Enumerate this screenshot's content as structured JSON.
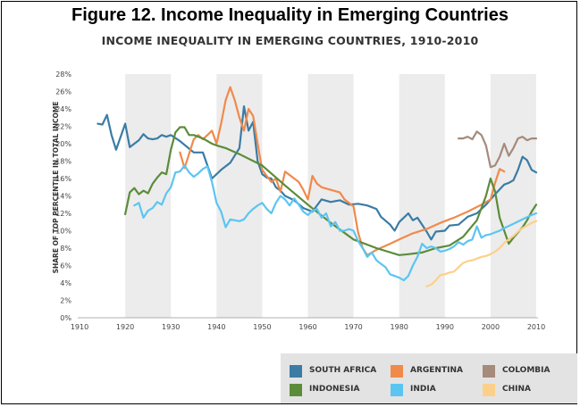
{
  "figure_title": "Figure 12. Income Inequality in Emerging Countries",
  "chart_data": {
    "type": "line",
    "title": "INCOME INEQUALITY IN EMERGING COUNTRIES, 1910-2010",
    "xlabel": "",
    "ylabel": "SHARE OF TOP PERCENTILE IN TOTAL INCOME",
    "xlim": [
      1910,
      2010
    ],
    "ylim": [
      0,
      28
    ],
    "x_ticks": [
      "1910",
      "1920",
      "1930",
      "1940",
      "1950",
      "1960",
      "1970",
      "1980",
      "1990",
      "2000",
      "2010"
    ],
    "y_ticks": [
      "0%",
      "2%",
      "4%",
      "6%",
      "8%",
      "10%",
      "12%",
      "14%",
      "16%",
      "18%",
      "20%",
      "22%",
      "24%",
      "26%",
      "28%"
    ],
    "shaded_decades": [
      [
        1920,
        1930
      ],
      [
        1940,
        1950
      ],
      [
        1960,
        1970
      ],
      [
        1980,
        1990
      ],
      [
        2000,
        2010
      ]
    ],
    "legend_position": "bottom-right",
    "series": [
      {
        "name": "SOUTH AFRICA",
        "color": "#3a7ca5",
        "points": [
          [
            1914,
            22.3
          ],
          [
            1915,
            22.2
          ],
          [
            1916,
            23.3
          ],
          [
            1917,
            21.0
          ],
          [
            1918,
            19.3
          ],
          [
            1919,
            20.8
          ],
          [
            1920,
            22.3
          ],
          [
            1921,
            19.6
          ],
          [
            1922,
            20.0
          ],
          [
            1923,
            20.4
          ],
          [
            1924,
            21.1
          ],
          [
            1925,
            20.6
          ],
          [
            1926,
            20.5
          ],
          [
            1927,
            20.6
          ],
          [
            1928,
            21.0
          ],
          [
            1929,
            20.8
          ],
          [
            1930,
            21.0
          ],
          [
            1932,
            20.3
          ],
          [
            1935,
            19.0
          ],
          [
            1937,
            19.0
          ],
          [
            1938,
            17.5
          ],
          [
            1939,
            16.0
          ],
          [
            1941,
            17.0
          ],
          [
            1943,
            17.8
          ],
          [
            1945,
            19.5
          ],
          [
            1946,
            24.3
          ],
          [
            1947,
            21.5
          ],
          [
            1948,
            22.5
          ],
          [
            1949,
            18.0
          ],
          [
            1950,
            16.5
          ],
          [
            1951,
            16.1
          ],
          [
            1952,
            16.0
          ],
          [
            1953,
            15.0
          ],
          [
            1954,
            14.6
          ],
          [
            1955,
            14.0
          ],
          [
            1957,
            13.5
          ],
          [
            1959,
            12.6
          ],
          [
            1961,
            12.2
          ],
          [
            1963,
            13.6
          ],
          [
            1965,
            13.3
          ],
          [
            1966,
            13.4
          ],
          [
            1967,
            13.5
          ],
          [
            1969,
            13.0
          ],
          [
            1971,
            13.1
          ],
          [
            1973,
            12.9
          ],
          [
            1975,
            12.5
          ],
          [
            1976,
            11.6
          ],
          [
            1978,
            10.7
          ],
          [
            1979,
            10.0
          ],
          [
            1980,
            11.0
          ],
          [
            1981,
            11.5
          ],
          [
            1982,
            12.0
          ],
          [
            1983,
            11.2
          ],
          [
            1984,
            11.5
          ],
          [
            1986,
            9.9
          ],
          [
            1987,
            9.0
          ],
          [
            1988,
            9.9
          ],
          [
            1990,
            10.0
          ],
          [
            1991,
            10.6
          ],
          [
            1993,
            10.7
          ],
          [
            1995,
            11.6
          ],
          [
            1997,
            12.0
          ],
          [
            1999,
            13.0
          ],
          [
            2001,
            14.2
          ],
          [
            2003,
            15.3
          ],
          [
            2004,
            15.5
          ],
          [
            2005,
            15.8
          ],
          [
            2006,
            17.0
          ],
          [
            2007,
            18.5
          ],
          [
            2008,
            18.1
          ],
          [
            2009,
            17.0
          ],
          [
            2010,
            16.7
          ]
        ]
      },
      {
        "name": "ARGENTINA",
        "color": "#f08a4b",
        "points": [
          [
            1932,
            19.0
          ],
          [
            1933,
            17.2
          ],
          [
            1935,
            20.5
          ],
          [
            1936,
            21.0
          ],
          [
            1937,
            20.5
          ],
          [
            1938,
            21.0
          ],
          [
            1939,
            21.5
          ],
          [
            1940,
            20.0
          ],
          [
            1941,
            22.3
          ],
          [
            1942,
            25.0
          ],
          [
            1943,
            26.5
          ],
          [
            1944,
            25.0
          ],
          [
            1945,
            23.0
          ],
          [
            1946,
            21.5
          ],
          [
            1947,
            24.0
          ],
          [
            1948,
            23.2
          ],
          [
            1949,
            20.0
          ],
          [
            1950,
            17.0
          ],
          [
            1952,
            15.6
          ],
          [
            1953,
            16.0
          ],
          [
            1954,
            14.5
          ],
          [
            1955,
            16.8
          ],
          [
            1956,
            16.4
          ],
          [
            1958,
            15.6
          ],
          [
            1959,
            14.7
          ],
          [
            1960,
            13.6
          ],
          [
            1961,
            16.3
          ],
          [
            1962,
            15.4
          ],
          [
            1963,
            15.0
          ],
          [
            1965,
            14.7
          ],
          [
            1967,
            14.4
          ],
          [
            1968,
            13.6
          ],
          [
            1970,
            12.8
          ],
          [
            1971,
            9.8
          ],
          [
            1972,
            8.0
          ],
          [
            1973,
            7.2
          ],
          [
            1975,
            7.8
          ],
          [
            1978,
            8.5
          ],
          [
            1980,
            9.0
          ],
          [
            1983,
            9.7
          ],
          [
            1986,
            10.2
          ],
          [
            1989,
            10.9
          ],
          [
            1992,
            11.5
          ],
          [
            1995,
            12.2
          ],
          [
            1998,
            13.0
          ],
          [
            2000,
            13.6
          ],
          [
            2001,
            15.5
          ],
          [
            2002,
            17.1
          ],
          [
            2003,
            16.8
          ]
        ]
      },
      {
        "name": "COLOMBIA",
        "color": "#a68a7b",
        "points": [
          [
            1993,
            20.6
          ],
          [
            1994,
            20.6
          ],
          [
            1995,
            20.8
          ],
          [
            1996,
            20.5
          ],
          [
            1997,
            21.4
          ],
          [
            1998,
            21.0
          ],
          [
            1999,
            19.8
          ],
          [
            2000,
            17.3
          ],
          [
            2001,
            17.5
          ],
          [
            2002,
            18.5
          ],
          [
            2003,
            20.0
          ],
          [
            2004,
            18.6
          ],
          [
            2005,
            19.5
          ],
          [
            2006,
            20.6
          ],
          [
            2007,
            20.8
          ],
          [
            2008,
            20.4
          ],
          [
            2009,
            20.6
          ],
          [
            2010,
            20.6
          ]
        ]
      },
      {
        "name": "INDONESIA",
        "color": "#5b8c3a",
        "points": [
          [
            1920,
            11.9
          ],
          [
            1921,
            14.4
          ],
          [
            1922,
            14.9
          ],
          [
            1923,
            14.2
          ],
          [
            1924,
            14.6
          ],
          [
            1925,
            14.3
          ],
          [
            1926,
            15.4
          ],
          [
            1927,
            16.1
          ],
          [
            1928,
            16.7
          ],
          [
            1929,
            16.5
          ],
          [
            1930,
            19.3
          ],
          [
            1931,
            21.3
          ],
          [
            1932,
            21.9
          ],
          [
            1933,
            21.9
          ],
          [
            1934,
            21.0
          ],
          [
            1935,
            21.0
          ],
          [
            1936,
            20.8
          ],
          [
            1937,
            20.6
          ],
          [
            1939,
            20.0
          ],
          [
            1940,
            19.8
          ],
          [
            1942,
            19.5
          ],
          [
            1945,
            18.8
          ],
          [
            1950,
            17.5
          ],
          [
            1955,
            15.2
          ],
          [
            1960,
            13.0
          ],
          [
            1965,
            10.9
          ],
          [
            1970,
            9.0
          ],
          [
            1975,
            8.0
          ],
          [
            1980,
            7.2
          ],
          [
            1982,
            7.3
          ],
          [
            1985,
            7.5
          ],
          [
            1988,
            8.0
          ],
          [
            1991,
            8.3
          ],
          [
            1994,
            9.3
          ],
          [
            1997,
            11.2
          ],
          [
            1999,
            14.0
          ],
          [
            2000,
            16.0
          ],
          [
            2001,
            14.5
          ],
          [
            2002,
            11.5
          ],
          [
            2003,
            10.0
          ],
          [
            2004,
            8.5
          ],
          [
            2005,
            9.2
          ],
          [
            2006,
            9.8
          ],
          [
            2007,
            10.4
          ],
          [
            2008,
            11.2
          ],
          [
            2009,
            12.2
          ],
          [
            2010,
            13.0
          ]
        ]
      },
      {
        "name": "INDIA",
        "color": "#5bc5f2",
        "points": [
          [
            1922,
            12.9
          ],
          [
            1923,
            13.2
          ],
          [
            1924,
            11.5
          ],
          [
            1925,
            12.3
          ],
          [
            1926,
            12.6
          ],
          [
            1927,
            13.3
          ],
          [
            1928,
            13.0
          ],
          [
            1929,
            14.3
          ],
          [
            1930,
            15.0
          ],
          [
            1931,
            16.7
          ],
          [
            1932,
            16.8
          ],
          [
            1933,
            17.5
          ],
          [
            1934,
            16.7
          ],
          [
            1935,
            16.2
          ],
          [
            1936,
            16.6
          ],
          [
            1937,
            17.1
          ],
          [
            1938,
            17.4
          ],
          [
            1939,
            15.6
          ],
          [
            1940,
            13.2
          ],
          [
            1941,
            12.2
          ],
          [
            1942,
            10.4
          ],
          [
            1943,
            11.3
          ],
          [
            1945,
            11.1
          ],
          [
            1946,
            11.3
          ],
          [
            1947,
            12.0
          ],
          [
            1948,
            12.5
          ],
          [
            1949,
            12.9
          ],
          [
            1950,
            13.2
          ],
          [
            1951,
            12.5
          ],
          [
            1952,
            12.0
          ],
          [
            1953,
            13.2
          ],
          [
            1954,
            14.0
          ],
          [
            1955,
            13.6
          ],
          [
            1956,
            12.9
          ],
          [
            1957,
            13.7
          ],
          [
            1958,
            13.0
          ],
          [
            1959,
            12.2
          ],
          [
            1960,
            11.8
          ],
          [
            1961,
            12.3
          ],
          [
            1962,
            12.5
          ],
          [
            1963,
            11.5
          ],
          [
            1964,
            12.0
          ],
          [
            1965,
            10.5
          ],
          [
            1966,
            11.0
          ],
          [
            1967,
            10.0
          ],
          [
            1968,
            10.0
          ],
          [
            1969,
            10.2
          ],
          [
            1970,
            10.0
          ],
          [
            1971,
            8.8
          ],
          [
            1972,
            8.0
          ],
          [
            1973,
            7.0
          ],
          [
            1974,
            7.5
          ],
          [
            1975,
            6.6
          ],
          [
            1976,
            6.2
          ],
          [
            1977,
            5.8
          ],
          [
            1978,
            5.0
          ],
          [
            1979,
            4.8
          ],
          [
            1980,
            4.6
          ],
          [
            1981,
            4.3
          ],
          [
            1982,
            4.8
          ],
          [
            1983,
            6.0
          ],
          [
            1984,
            7.0
          ],
          [
            1985,
            8.5
          ],
          [
            1986,
            8.0
          ],
          [
            1987,
            8.2
          ],
          [
            1988,
            8.0
          ],
          [
            1989,
            7.6
          ],
          [
            1990,
            7.7
          ],
          [
            1991,
            7.9
          ],
          [
            1992,
            8.2
          ],
          [
            1993,
            8.7
          ],
          [
            1994,
            8.4
          ],
          [
            1995,
            8.8
          ],
          [
            1996,
            9.0
          ],
          [
            1997,
            10.5
          ],
          [
            1998,
            9.2
          ],
          [
            1999,
            9.5
          ],
          [
            2000,
            9.6
          ],
          [
            2001,
            9.8
          ],
          [
            2002,
            10.0
          ],
          [
            2003,
            10.3
          ],
          [
            2005,
            10.8
          ],
          [
            2007,
            11.3
          ],
          [
            2009,
            11.8
          ],
          [
            2010,
            12.0
          ]
        ]
      },
      {
        "name": "CHINA",
        "color": "#fcd08a",
        "points": [
          [
            1986,
            3.6
          ],
          [
            1987,
            3.8
          ],
          [
            1988,
            4.3
          ],
          [
            1989,
            4.9
          ],
          [
            1990,
            5.0
          ],
          [
            1991,
            5.2
          ],
          [
            1992,
            5.3
          ],
          [
            1993,
            5.8
          ],
          [
            1994,
            6.3
          ],
          [
            1995,
            6.5
          ],
          [
            1996,
            6.6
          ],
          [
            1997,
            6.8
          ],
          [
            1998,
            7.0
          ],
          [
            1999,
            7.1
          ],
          [
            2000,
            7.3
          ],
          [
            2001,
            7.6
          ],
          [
            2002,
            8.0
          ],
          [
            2003,
            8.6
          ],
          [
            2004,
            9.0
          ],
          [
            2005,
            9.4
          ],
          [
            2006,
            9.9
          ],
          [
            2007,
            10.3
          ],
          [
            2008,
            10.6
          ],
          [
            2009,
            10.9
          ],
          [
            2010,
            11.1
          ]
        ]
      }
    ]
  },
  "legend": {
    "items": [
      {
        "label": "SOUTH AFRICA",
        "color": "#3a7ca5"
      },
      {
        "label": "ARGENTINA",
        "color": "#f08a4b"
      },
      {
        "label": "COLOMBIA",
        "color": "#a68a7b"
      },
      {
        "label": "INDONESIA",
        "color": "#5b8c3a"
      },
      {
        "label": "INDIA",
        "color": "#5bc5f2"
      },
      {
        "label": "CHINA",
        "color": "#fcd08a"
      }
    ]
  }
}
